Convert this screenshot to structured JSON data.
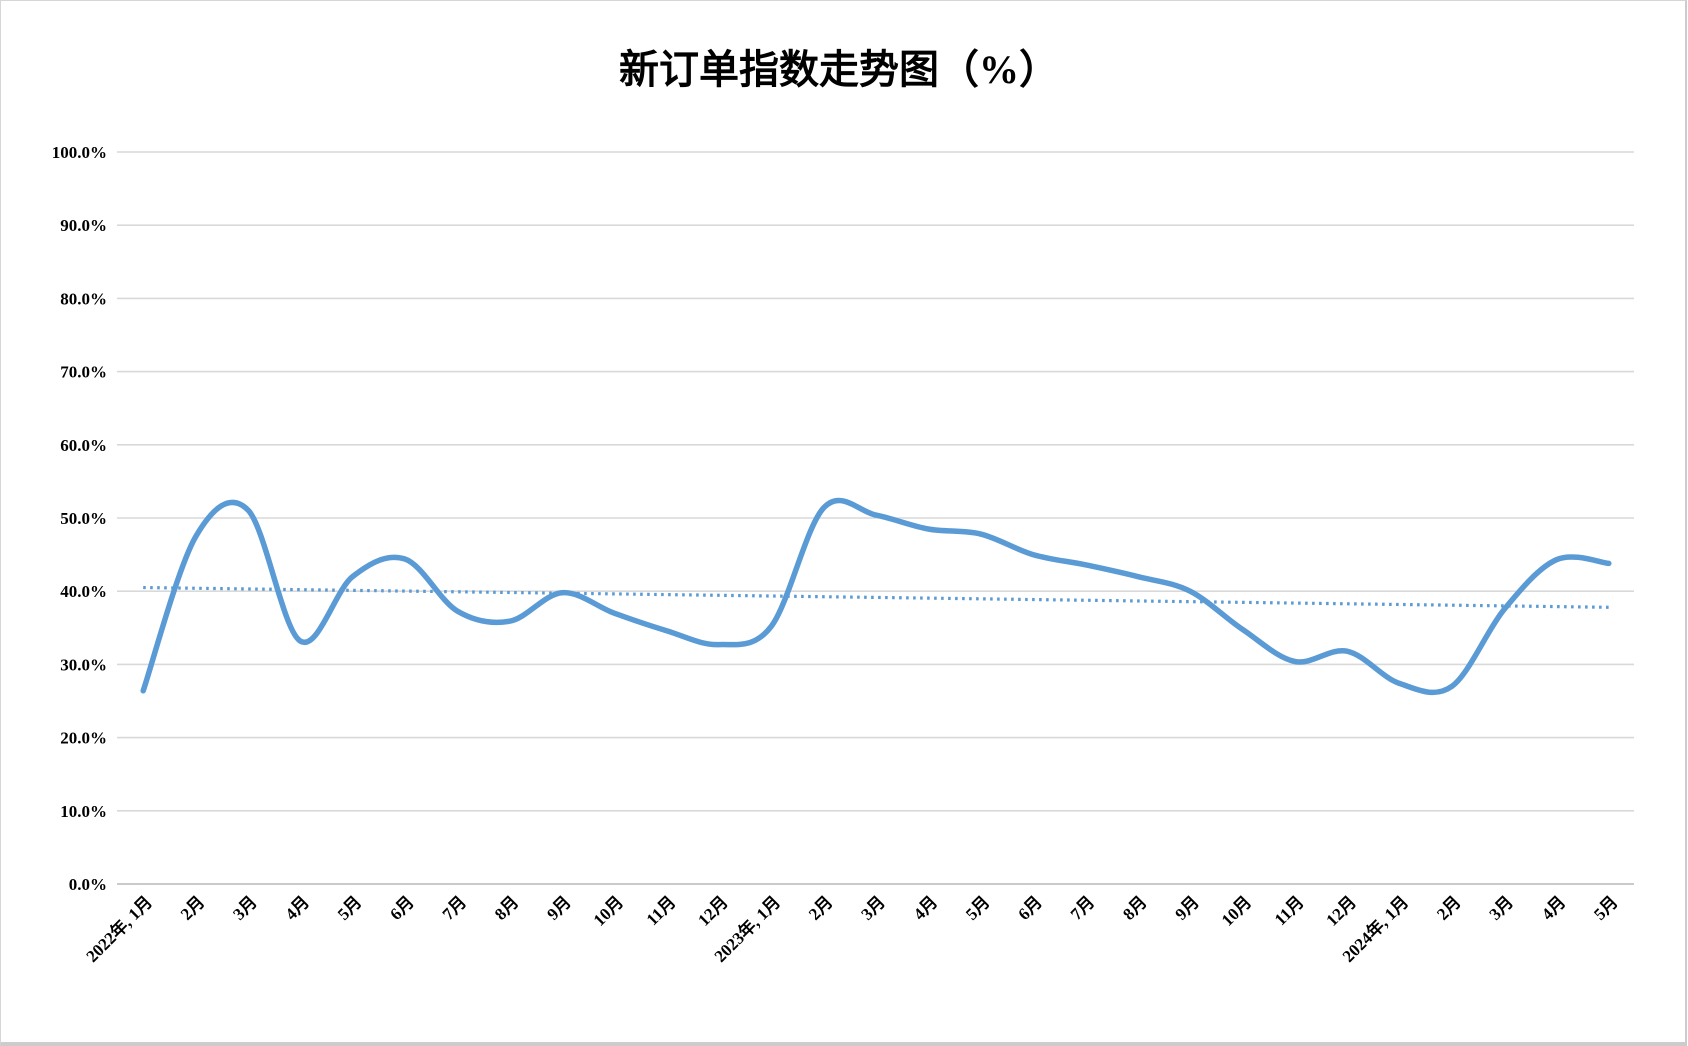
{
  "chart_data": {
    "type": "line",
    "title": "新订单指数走势图（%）",
    "legend": "none",
    "grid": true,
    "x_labels": [
      "2022年, 1月",
      "2月",
      "3月",
      "4月",
      "5月",
      "6月",
      "7月",
      "8月",
      "9月",
      "10月",
      "11月",
      "12月",
      "2023年, 1月",
      "2月",
      "3月",
      "4月",
      "5月",
      "6月",
      "7月",
      "8月",
      "9月",
      "10月",
      "11月",
      "12月",
      "2024年, 1月",
      "2月",
      "3月",
      "4月",
      "5月"
    ],
    "series": [
      {
        "color": "#5B9BD5",
        "smooth": true,
        "values": [
          26.4,
          47.4,
          51.1,
          33.2,
          42.0,
          44.4,
          37.3,
          35.9,
          39.8,
          37.0,
          34.6,
          32.7,
          35.2,
          51.4,
          50.4,
          48.5,
          47.8,
          45.0,
          43.6,
          42.0,
          40.0,
          34.8,
          30.4,
          31.8,
          27.4,
          27.0,
          37.5,
          44.3,
          43.8
        ]
      }
    ],
    "trendline": {
      "style": "dotted",
      "color": "#5B9BD5",
      "start_value": 40.5,
      "end_value": 37.8
    },
    "y_axis": {
      "min": 0,
      "max": 100,
      "step": 10,
      "tick_labels": [
        "0.0%",
        "10.0%",
        "20.0%",
        "30.0%",
        "40.0%",
        "50.0%",
        "60.0%",
        "70.0%",
        "80.0%",
        "90.0%",
        "100.0%"
      ]
    },
    "colors": {
      "background": "#FFFFFF",
      "gridline": "#D9D9D9",
      "text": "#000000"
    }
  }
}
